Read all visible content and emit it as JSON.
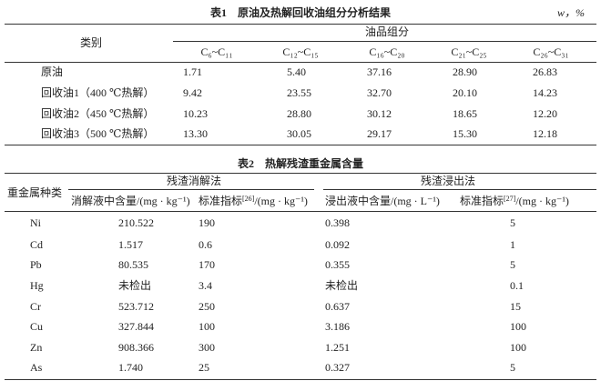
{
  "table1": {
    "title": "表1　原油及热解回收油组分分析结果",
    "unit": "w，%",
    "category_header": "类别",
    "group_header": "油品组分",
    "columns": [
      "C₆~C₁₁",
      "C₁₂~C₁₅",
      "C₁₆~C₂₀",
      "C₂₁~C₂₅",
      "C₂₆~C₃₁"
    ],
    "rows": [
      {
        "label": "原油",
        "values": [
          "1.71",
          "5.40",
          "37.16",
          "28.90",
          "26.83"
        ]
      },
      {
        "label": "回收油1（400 ℃热解）",
        "values": [
          "9.42",
          "23.55",
          "32.70",
          "20.10",
          "14.23"
        ]
      },
      {
        "label": "回收油2（450 ℃热解）",
        "values": [
          "10.23",
          "28.80",
          "30.12",
          "18.65",
          "12.20"
        ]
      },
      {
        "label": "回收油3（500 ℃热解）",
        "values": [
          "13.30",
          "30.05",
          "29.17",
          "15.30",
          "12.18"
        ]
      }
    ]
  },
  "table2": {
    "title": "表2　热解残渣重金属含量",
    "category_header": "重金属种类",
    "group_headers": [
      "残渣消解法",
      "残渣浸出法"
    ],
    "columns": [
      {
        "label": "消解液中含量/(mg · kg⁻¹)"
      },
      {
        "label": "标准指标",
        "ref": "[26]",
        "unit": "/(mg · kg⁻¹)"
      },
      {
        "label": "浸出液中含量/(mg · L⁻¹)"
      },
      {
        "label": "标准指标",
        "ref": "[27]",
        "unit": "/(mg · kg⁻¹)"
      }
    ],
    "rows": [
      {
        "label": "Ni",
        "values": [
          "210.522",
          "190",
          "0.398",
          "5"
        ]
      },
      {
        "label": "Cd",
        "values": [
          "1.517",
          "0.6",
          "0.092",
          "1"
        ]
      },
      {
        "label": "Pb",
        "values": [
          "80.535",
          "170",
          "0.355",
          "5"
        ]
      },
      {
        "label": "Hg",
        "values": [
          "未检出",
          "3.4",
          "未检出",
          "0.1"
        ]
      },
      {
        "label": "Cr",
        "values": [
          "523.712",
          "250",
          "0.637",
          "15"
        ]
      },
      {
        "label": "Cu",
        "values": [
          "327.844",
          "100",
          "3.186",
          "100"
        ]
      },
      {
        "label": "Zn",
        "values": [
          "908.366",
          "300",
          "1.251",
          "100"
        ]
      },
      {
        "label": "As",
        "values": [
          "1.740",
          "25",
          "0.327",
          "5"
        ]
      }
    ]
  }
}
